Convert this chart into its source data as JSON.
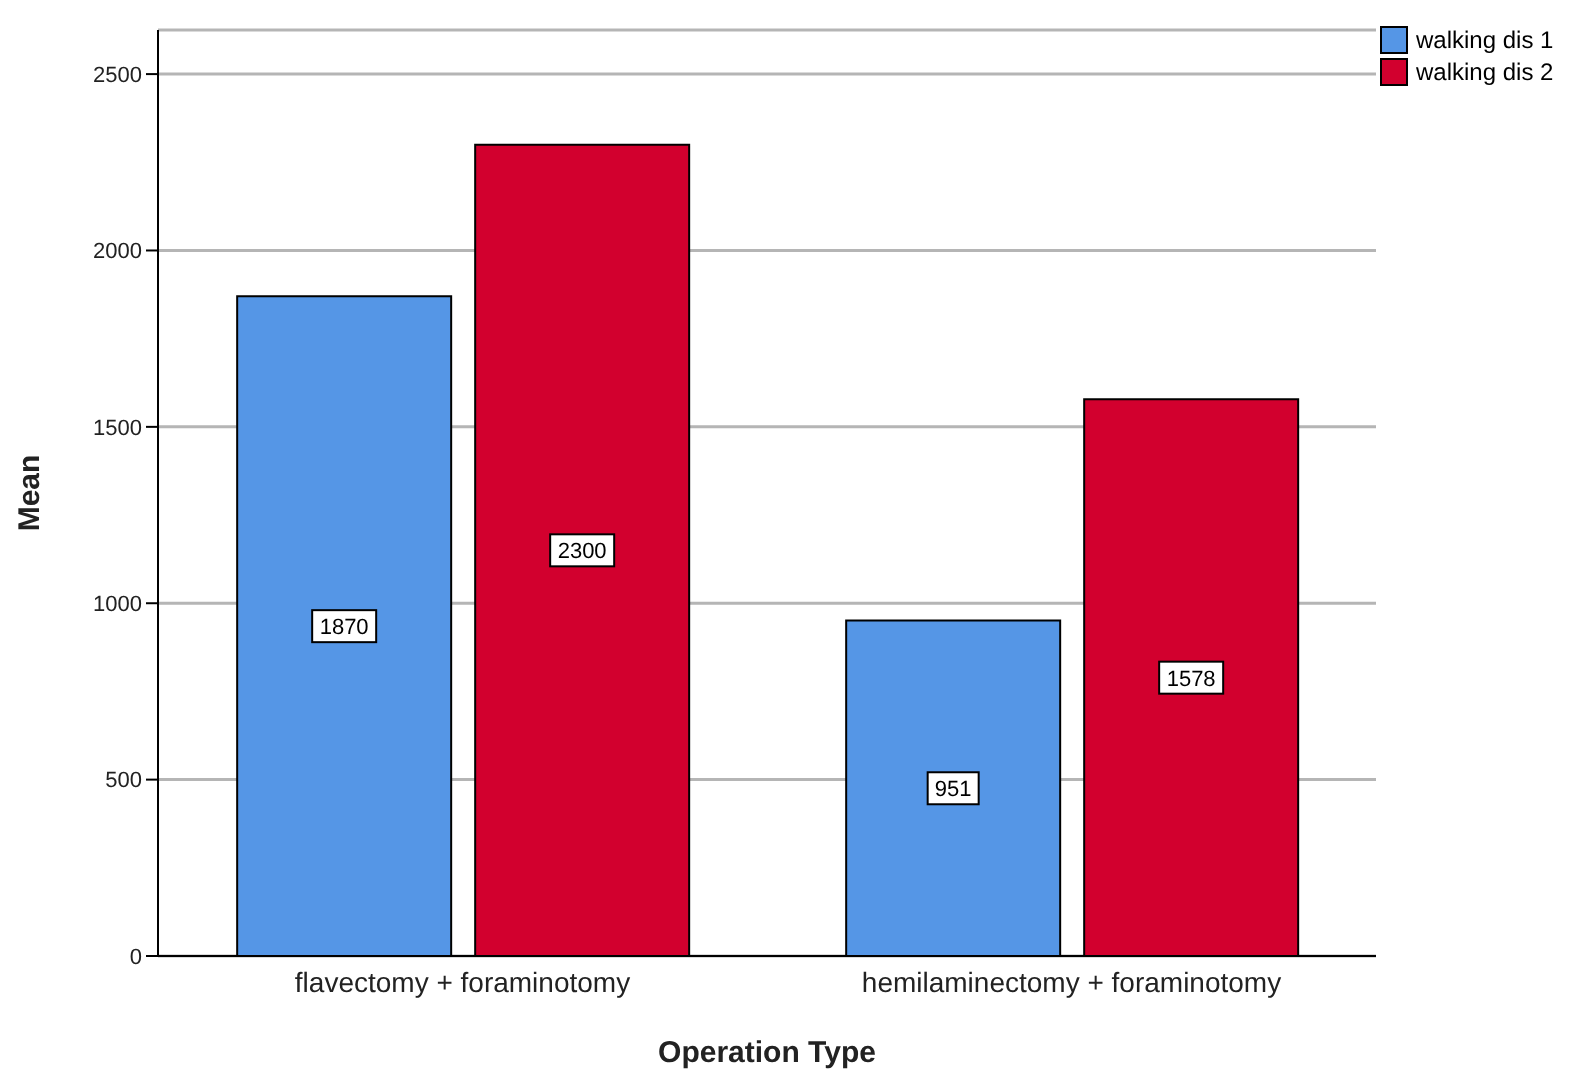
{
  "chart_data": {
    "type": "bar",
    "xlabel": "Operation Type",
    "ylabel": "Mean",
    "categories": [
      "flavectomy + foraminotomy",
      "hemilaminectomy + foraminotomy"
    ],
    "series": [
      {
        "name": "walking dis 1",
        "color": "#5596e6",
        "values": [
          1870,
          951
        ]
      },
      {
        "name": "walking dis 2",
        "color": "#d2002e",
        "values": [
          2300,
          1578
        ]
      }
    ],
    "ylim": [
      0,
      2625
    ],
    "yticks": [
      0,
      500,
      1000,
      1500,
      2000,
      2500
    ],
    "grid": "y",
    "legend": "top right",
    "data_labels": true
  }
}
